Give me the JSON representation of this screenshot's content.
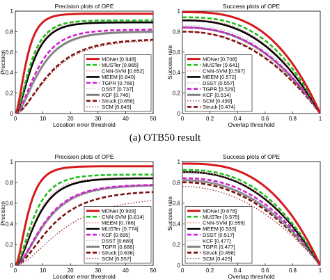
{
  "caption": "(a) OTB50 result",
  "chart_data": [
    {
      "type": "line",
      "title": "Precision plots of OPE",
      "xlabel": "Location error threshold",
      "ylabel": "Precision",
      "xlim": [
        0,
        50
      ],
      "ylim": [
        0,
        1
      ],
      "xticks": [
        0,
        10,
        20,
        30,
        40,
        50
      ],
      "yticks": [
        0,
        0.2,
        0.4,
        0.6,
        0.8,
        1
      ],
      "grid": false,
      "legend_position": "bottom-right",
      "curve_kind": "precision",
      "series": [
        {
          "name": "MDNet [0.948]",
          "score": 0.948,
          "final": 0.975,
          "color": "#d7191c",
          "dash": "solid",
          "width": 3
        },
        {
          "name": "MUSTer [0.865]",
          "score": 0.865,
          "final": 0.91,
          "color": "#1fbf1f",
          "dash": "dash",
          "width": 2.6
        },
        {
          "name": "CNN-SVM [0.852]",
          "score": 0.852,
          "final": 0.905,
          "color": "#f08080",
          "dash": "dot",
          "width": 1.4
        },
        {
          "name": "MEEM [0.840]",
          "score": 0.84,
          "final": 0.89,
          "color": "#000000",
          "dash": "solid",
          "width": 2.6
        },
        {
          "name": "TGPR [0.766]",
          "score": 0.766,
          "final": 0.82,
          "color": "#d01fd0",
          "dash": "dash",
          "width": 2.6
        },
        {
          "name": "DSST [0.737]",
          "score": 0.737,
          "final": 0.79,
          "color": "#bdbdbd",
          "dash": "dot",
          "width": 1.4
        },
        {
          "name": "KCF [0.740]",
          "score": 0.74,
          "final": 0.8,
          "color": "#808080",
          "dash": "solid",
          "width": 3
        },
        {
          "name": "Struck [0.656]",
          "score": 0.656,
          "final": 0.73,
          "color": "#7a1010",
          "dash": "dash",
          "width": 2.6
        },
        {
          "name": "SCM [0.649]",
          "score": 0.649,
          "final": 0.72,
          "color": "#a03030",
          "dash": "dot",
          "width": 1.4
        }
      ]
    },
    {
      "type": "line",
      "title": "Success plots of OPE",
      "xlabel": "Overlap threshold",
      "ylabel": "Success rate",
      "xlim": [
        0,
        1
      ],
      "ylim": [
        0,
        1
      ],
      "xticks": [
        0,
        0.2,
        0.4,
        0.6,
        0.8,
        1
      ],
      "yticks": [
        0,
        0.2,
        0.4,
        0.6,
        0.8,
        1
      ],
      "grid": false,
      "legend_position": "bottom-left",
      "curve_kind": "success",
      "series": [
        {
          "name": "MDNet [0.708]",
          "score": 0.708,
          "start": 0.99,
          "color": "#d7191c",
          "dash": "solid",
          "width": 3
        },
        {
          "name": "MUSTer [0.641]",
          "score": 0.641,
          "start": 0.94,
          "color": "#1fbf1f",
          "dash": "dash",
          "width": 2.6
        },
        {
          "name": "CNN-SVM [0.597]",
          "score": 0.597,
          "start": 0.92,
          "color": "#f08080",
          "dash": "dot",
          "width": 1.4
        },
        {
          "name": "MEEM [0.572]",
          "score": 0.572,
          "start": 0.91,
          "color": "#000000",
          "dash": "solid",
          "width": 2.6
        },
        {
          "name": "DSST [0.557]",
          "score": 0.557,
          "start": 0.86,
          "color": "#bdbdbd",
          "dash": "dot",
          "width": 1.4
        },
        {
          "name": "TGPR [0.529]",
          "score": 0.529,
          "start": 0.84,
          "color": "#d01fd0",
          "dash": "dash",
          "width": 2.6
        },
        {
          "name": "KCF [0.514]",
          "score": 0.514,
          "start": 0.84,
          "color": "#808080",
          "dash": "solid",
          "width": 3
        },
        {
          "name": "SCM [0.499]",
          "score": 0.499,
          "start": 0.8,
          "color": "#a03030",
          "dash": "dot",
          "width": 1.4
        },
        {
          "name": "Struck [0.474]",
          "score": 0.474,
          "start": 0.8,
          "color": "#7a1010",
          "dash": "dash",
          "width": 2.6
        }
      ]
    },
    {
      "type": "line",
      "title": "Precision plots of OPE",
      "xlabel": "Location error threshold",
      "ylabel": "Precision",
      "xlim": [
        0,
        50
      ],
      "ylim": [
        0,
        1
      ],
      "xticks": [
        0,
        10,
        20,
        30,
        40,
        50
      ],
      "yticks": [
        0,
        0.2,
        0.4,
        0.6,
        0.8,
        1
      ],
      "grid": false,
      "legend_position": "bottom-right",
      "curve_kind": "precision",
      "series": [
        {
          "name": "MDNet [0.909]",
          "score": 0.909,
          "final": 0.955,
          "color": "#d7191c",
          "dash": "solid",
          "width": 3
        },
        {
          "name": "CNN-SVM [0.814]",
          "score": 0.814,
          "final": 0.875,
          "color": "#1fbf1f",
          "dash": "dash",
          "width": 2.6
        },
        {
          "name": "MEEM [0.786]",
          "score": 0.786,
          "final": 0.85,
          "color": "#f08080",
          "dash": "dot",
          "width": 1.4
        },
        {
          "name": "MUSTer [0.774]",
          "score": 0.774,
          "final": 0.84,
          "color": "#000000",
          "dash": "solid",
          "width": 2.6
        },
        {
          "name": "KCF [0.695]",
          "score": 0.695,
          "final": 0.78,
          "color": "#d01fd0",
          "dash": "dash",
          "width": 2.6
        },
        {
          "name": "DSST [0.689]",
          "score": 0.689,
          "final": 0.77,
          "color": "#bdbdbd",
          "dash": "dot",
          "width": 1.4
        },
        {
          "name": "TGPR [0.688]",
          "score": 0.688,
          "final": 0.775,
          "color": "#808080",
          "dash": "solid",
          "width": 3
        },
        {
          "name": "Struck [0.636]",
          "score": 0.636,
          "final": 0.72,
          "color": "#7a1010",
          "dash": "dash",
          "width": 2.6
        },
        {
          "name": "SCM [0.557]",
          "score": 0.557,
          "final": 0.66,
          "color": "#a03030",
          "dash": "dot",
          "width": 1.4
        }
      ]
    },
    {
      "type": "line",
      "title": "Success plots of OPE",
      "xlabel": "Overlap threshold",
      "ylabel": "Success rate",
      "xlim": [
        0,
        1
      ],
      "ylim": [
        0,
        1
      ],
      "xticks": [
        0,
        0.2,
        0.4,
        0.6,
        0.8,
        1
      ],
      "yticks": [
        0,
        0.2,
        0.4,
        0.6,
        0.8,
        1
      ],
      "grid": false,
      "legend_position": "bottom-left",
      "curve_kind": "success",
      "series": [
        {
          "name": "MDNet [0.678]",
          "score": 0.678,
          "start": 0.98,
          "color": "#d7191c",
          "dash": "solid",
          "width": 3
        },
        {
          "name": "MUSTer [0.575]",
          "score": 0.575,
          "start": 0.92,
          "color": "#1fbf1f",
          "dash": "dash",
          "width": 2.6
        },
        {
          "name": "CNN-SVM [0.555]",
          "score": 0.555,
          "start": 0.9,
          "color": "#f08080",
          "dash": "dot",
          "width": 1.4
        },
        {
          "name": "MEEM [0.533]",
          "score": 0.533,
          "start": 0.9,
          "color": "#000000",
          "dash": "solid",
          "width": 2.6
        },
        {
          "name": "DSST [0.517]",
          "score": 0.517,
          "start": 0.84,
          "color": "#d01fd0",
          "dash": "dash",
          "width": 2.6
        },
        {
          "name": "KCF [0.477]",
          "score": 0.477,
          "start": 0.82,
          "color": "#bdbdbd",
          "dash": "dot",
          "width": 1.4
        },
        {
          "name": "TGPR [0.477]",
          "score": 0.477,
          "start": 0.82,
          "color": "#808080",
          "dash": "solid",
          "width": 3
        },
        {
          "name": "Struck [0.458]",
          "score": 0.458,
          "start": 0.8,
          "color": "#7a1010",
          "dash": "dash",
          "width": 2.6
        },
        {
          "name": "SCM [0.429]",
          "score": 0.429,
          "start": 0.76,
          "color": "#a03030",
          "dash": "dot",
          "width": 1.4
        }
      ]
    }
  ]
}
